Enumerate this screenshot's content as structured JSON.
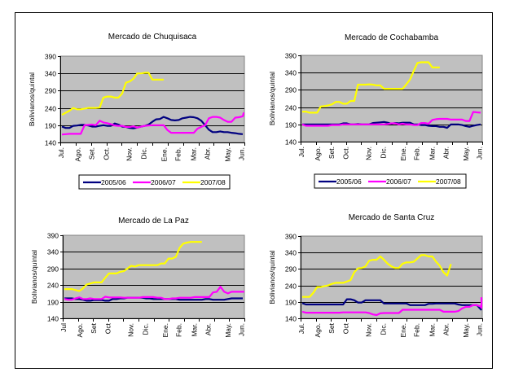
{
  "series_colors": {
    "2005/06": "#000080",
    "2006/07": "#ff00ff",
    "2007/08": "#ffff00"
  },
  "plot_background": "#c0c0c0",
  "chart_data": [
    {
      "type": "line",
      "title": "Mercado de Chuquisaca",
      "ylabel": "Bolivianos/quintal",
      "xlabel": "",
      "ylim": [
        140,
        390
      ],
      "yticks": [
        140,
        190,
        240,
        290,
        340,
        390
      ],
      "categories": [
        "Jul.",
        "Ago.",
        "Set.",
        "Oct.",
        "Nov.",
        "Dic.",
        "Ene.",
        "Feb.",
        "Mar.",
        "Abr.",
        "May.",
        "Jun."
      ],
      "grid": true,
      "legend": "bottom",
      "series": [
        {
          "name": "2005/06",
          "values": [
            186,
            182,
            182,
            188,
            189,
            191,
            191,
            189,
            186,
            186,
            188,
            190,
            188,
            188,
            195,
            192,
            186,
            185,
            182,
            181,
            183,
            186,
            188,
            192,
            200,
            207,
            208,
            214,
            210,
            205,
            204,
            205,
            210,
            212,
            214,
            213,
            210,
            203,
            190,
            177,
            170,
            170,
            172,
            170,
            170,
            168,
            167,
            165,
            164
          ]
        },
        {
          "name": "2006/07",
          "values": [
            163,
            164,
            165,
            165,
            165,
            165,
            190,
            191,
            192,
            190,
            203,
            198,
            196,
            193,
            189,
            188,
            188,
            185,
            185,
            187,
            183,
            186,
            188,
            189,
            190,
            190,
            190,
            190,
            176,
            168,
            168,
            168,
            168,
            168,
            168,
            168,
            180,
            185,
            190,
            210,
            214,
            214,
            212,
            205,
            200,
            200,
            212,
            213,
            216,
            225,
            222
          ]
        },
        {
          "name": "2007/08",
          "values": [
            220,
            226,
            232,
            240,
            236,
            236,
            238,
            240,
            240,
            240,
            241,
            270,
            273,
            273,
            270,
            270,
            282,
            313,
            317,
            325,
            340,
            340,
            342,
            342,
            322,
            322,
            322,
            322
          ]
        }
      ]
    },
    {
      "type": "line",
      "title": "Mercado de Cochabamba",
      "ylabel": "Bolivianos/quintal",
      "xlabel": "",
      "ylim": [
        140,
        390
      ],
      "yticks": [
        140,
        190,
        240,
        290,
        340,
        390
      ],
      "categories": [
        "Jul.",
        "Ago.",
        "Set.",
        "Oct.",
        "Nov.",
        "Dic.",
        "Ene.",
        "Feb.",
        "Mar.",
        "Abr.",
        "May.",
        "Jun."
      ],
      "grid": true,
      "legend": "bottom",
      "series": [
        {
          "name": "2005/06",
          "values": [
            190,
            190,
            190,
            190,
            190,
            190,
            190,
            190,
            190,
            190,
            190,
            193,
            193,
            190,
            190,
            191,
            190,
            190,
            190,
            194,
            195,
            196,
            197,
            195,
            192,
            194,
            193,
            195,
            195,
            195,
            190,
            190,
            188,
            188,
            186,
            185,
            185,
            183,
            183,
            180,
            190,
            190,
            190,
            188,
            185,
            183,
            186,
            188,
            190
          ]
        },
        {
          "name": "2006/07",
          "values": [
            190,
            186,
            186,
            186,
            186,
            186,
            186,
            186,
            188,
            188,
            188,
            190,
            190,
            190,
            190,
            190,
            190,
            190,
            190,
            190,
            190,
            190,
            190,
            191,
            193,
            193,
            190,
            192,
            190,
            190,
            188,
            188,
            194,
            194,
            192,
            203,
            205,
            206,
            206,
            206,
            204,
            204,
            204,
            204,
            200,
            200,
            226,
            225,
            224
          ]
        },
        {
          "name": "2007/08",
          "values": [
            227,
            227,
            224,
            224,
            224,
            242,
            243,
            245,
            248,
            255,
            255,
            250,
            250,
            258,
            258,
            305,
            305,
            305,
            306,
            305,
            303,
            303,
            293,
            293,
            293,
            293,
            293,
            293,
            306,
            320,
            345,
            368,
            370,
            370,
            370,
            355,
            355,
            355
          ]
        }
      ]
    },
    {
      "type": "line",
      "title": "Mercado de La Paz",
      "ylabel": "Bolivianos/quintal",
      "xlabel": "",
      "ylim": [
        140,
        390
      ],
      "yticks": [
        140,
        190,
        240,
        290,
        340,
        390
      ],
      "categories": [
        "Jul",
        "Ago.",
        "Set",
        "Oct",
        "Nov.",
        "Dic.",
        "Ene.",
        "Feb.",
        "Mar.",
        "Abr.",
        "May.",
        "Jun."
      ],
      "grid": true,
      "legend": "none",
      "series": [
        {
          "name": "2005/06",
          "values": [
            200,
            200,
            200,
            198,
            198,
            196,
            193,
            193,
            195,
            195,
            195,
            193,
            193,
            198,
            198,
            200,
            200,
            202,
            202,
            202,
            202,
            202,
            200,
            200,
            198,
            198,
            198,
            198,
            198,
            198,
            198,
            196,
            196,
            196,
            196,
            196,
            196,
            196,
            198,
            198,
            196,
            196,
            196,
            196,
            198,
            200,
            200,
            200,
            200
          ]
        },
        {
          "name": "2006/07",
          "values": [
            198,
            196,
            196,
            200,
            203,
            198,
            198,
            200,
            198,
            198,
            198,
            205,
            203,
            203,
            203,
            203,
            202,
            202,
            202,
            202,
            202,
            204,
            204,
            204,
            204,
            202,
            202,
            198,
            198,
            200,
            200,
            202,
            202,
            202,
            202,
            204,
            204,
            204,
            204,
            204,
            218,
            220,
            235,
            220,
            215,
            220,
            220,
            220,
            220,
            220,
            222
          ]
        },
        {
          "name": "2007/08",
          "values": [
            228,
            228,
            228,
            225,
            222,
            230,
            242,
            245,
            248,
            248,
            248,
            262,
            275,
            275,
            275,
            280,
            282,
            290,
            298,
            296,
            300,
            300,
            300,
            300,
            300,
            300,
            305,
            305,
            320,
            320,
            325,
            352,
            365,
            368,
            370,
            370,
            370,
            370
          ]
        }
      ]
    },
    {
      "type": "line",
      "title": "Mercado de Santa Cruz",
      "ylabel": "Bolivianos/quintal",
      "xlabel": "",
      "ylim": [
        140,
        390
      ],
      "yticks": [
        140,
        190,
        240,
        290,
        340,
        390
      ],
      "categories": [
        "Jul.",
        "Ago.",
        "Set",
        "Oct",
        "Nov.",
        "Dic.",
        "Ene.",
        "Feb.",
        "Mar.",
        "Abr.",
        "May.",
        "Jun."
      ],
      "grid": true,
      "legend": "none",
      "series": [
        {
          "name": "2005/06",
          "values": [
            186,
            182,
            182,
            182,
            182,
            182,
            182,
            182,
            182,
            182,
            182,
            182,
            198,
            198,
            195,
            188,
            188,
            195,
            195,
            195,
            195,
            195,
            185,
            185,
            185,
            185,
            185,
            185,
            185,
            180,
            180,
            180,
            180,
            180,
            184,
            184,
            185,
            185,
            185,
            185,
            185,
            185,
            182,
            180,
            180,
            180,
            180,
            180,
            168,
            165
          ]
        },
        {
          "name": "2006/07",
          "values": [
            160,
            157,
            157,
            157,
            157,
            157,
            157,
            157,
            157,
            157,
            157,
            158,
            158,
            158,
            158,
            158,
            158,
            158,
            156,
            152,
            150,
            155,
            156,
            156,
            156,
            156,
            156,
            166,
            166,
            166,
            166,
            166,
            166,
            166,
            166,
            166,
            166,
            166,
            160,
            160,
            160,
            160,
            162,
            170,
            175,
            175,
            180,
            180,
            176,
            172,
            175,
            192,
            198,
            198,
            200,
            204
          ]
        },
        {
          "name": "2007/08",
          "values": [
            205,
            205,
            205,
            218,
            235,
            235,
            238,
            240,
            245,
            248,
            248,
            248,
            252,
            256,
            280,
            292,
            293,
            298,
            315,
            318,
            318,
            328,
            318,
            306,
            298,
            293,
            293,
            306,
            310,
            310,
            312,
            322,
            332,
            332,
            328,
            328,
            312,
            300,
            280,
            270,
            305
          ]
        }
      ]
    }
  ]
}
